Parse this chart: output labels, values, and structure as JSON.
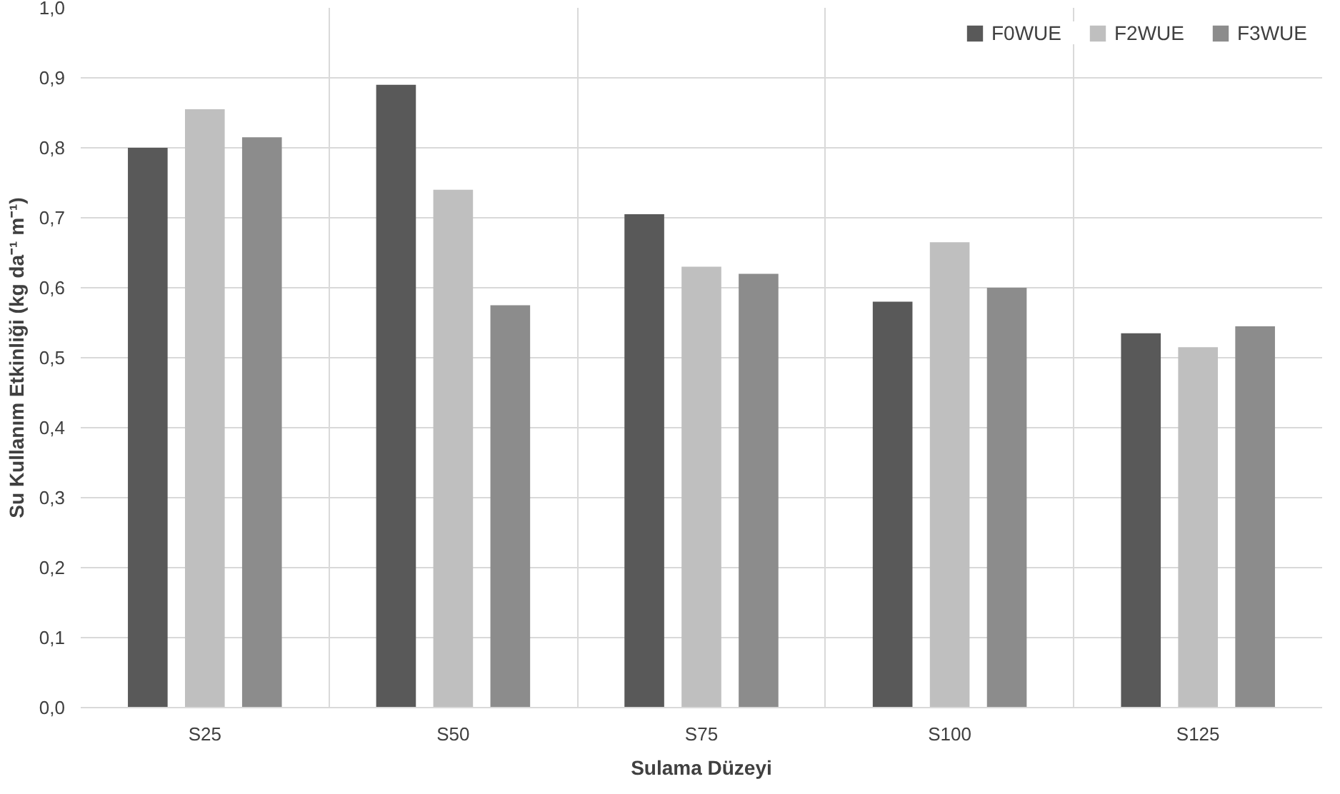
{
  "chart_data": {
    "type": "bar",
    "xlabel": "Sulama Düzeyi",
    "ylabel": "Su Kullanım Etkinliği (kg da⁻¹ m⁻¹)",
    "categories": [
      "S25",
      "S50",
      "S75",
      "S100",
      "S125"
    ],
    "series": [
      {
        "name": "F0WUE",
        "color": "#595959",
        "values": [
          0.8,
          0.89,
          0.705,
          0.58,
          0.535
        ]
      },
      {
        "name": "F2WUE",
        "color": "#bfbfbf",
        "values": [
          0.855,
          0.74,
          0.63,
          0.665,
          0.515
        ]
      },
      {
        "name": "F3WUE",
        "color": "#8c8c8c",
        "values": [
          0.815,
          0.575,
          0.62,
          0.6,
          0.545
        ]
      }
    ],
    "ylim": [
      0,
      1
    ],
    "yticks": [
      {
        "value": 0,
        "label": "0,0"
      },
      {
        "value": 0.1,
        "label": "0,1"
      },
      {
        "value": 0.2,
        "label": "0,2"
      },
      {
        "value": 0.3,
        "label": "0,3"
      },
      {
        "value": 0.4,
        "label": "0,4"
      },
      {
        "value": 0.5,
        "label": "0,5"
      },
      {
        "value": 0.6,
        "label": "0,6"
      },
      {
        "value": 0.7,
        "label": "0,7"
      },
      {
        "value": 0.8,
        "label": "0,8"
      },
      {
        "value": 0.9,
        "label": "0,9"
      },
      {
        "value": 1.0,
        "label": "1,0"
      }
    ],
    "grid": true,
    "legend": "top right"
  }
}
